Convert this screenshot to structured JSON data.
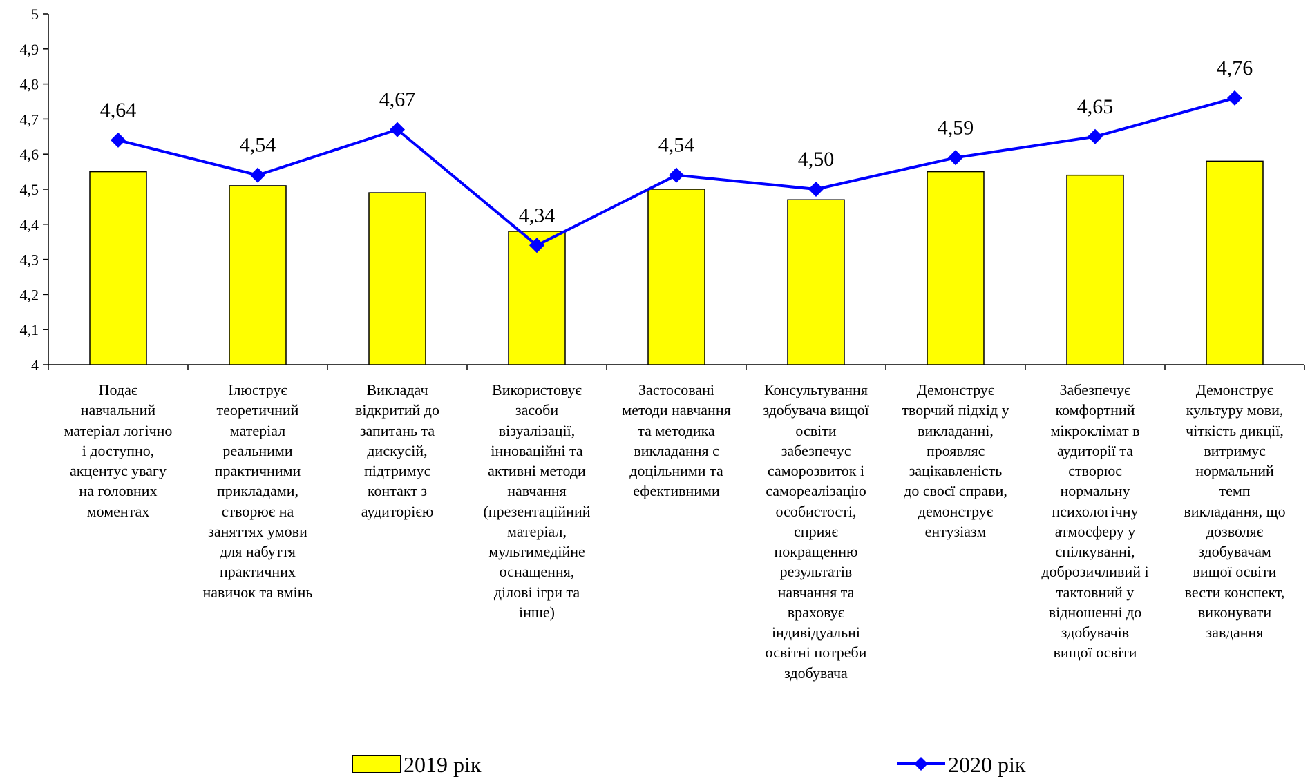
{
  "chart_data": {
    "type": "bar",
    "categories": [
      "Подає\nнавчальний\nматеріал логічно\nі доступно,\nакцентує увагу\nна головних\nмоментах",
      "Ілюструє\nтеоретичний\nматеріал\nреальними\nпрактичними\nприкладами,\nстворює на\nзаняттях умови\nдля набуття\nпрактичних\nнавичок та вмінь",
      "Викладач\nвідкритий до\nзапитань та\nдискусій,\nпідтримує\nконтакт з\nаудиторією",
      "Використовує\nзасоби\nвізуалізації,\nінноваційні та\nактивні методи\nнавчання\n(презентаційний\nматеріал,\nмультимедійне\nоснащення,\nділові ігри та\nінше)",
      "Застосовані\nметоди навчання\nта методика\nвикладання  є\nдоцільними та\nефективними",
      "Консультування\nздобувача вищої\nосвіти\nзабезпечує\nсаморозвиток і\nсамореалізацію\nособистості,\nсприяє\nпокращенню\nрезультатів\nнавчання та\nвраховує\nіндивідуальні\nосвітні потреби\nздобувача",
      "Демонструє\nтворчий підхід у\nвикладанні,\nпроявляє\nзацікавленість\nдо своєї справи,\nдемонструє\nентузіазм",
      "Забезпечує\nкомфортний\nмікроклімат в\nаудиторії та\nстворює\nнормальну\nпсихологічну\nатмосферу у\nспілкуванні,\nдоброзичливий і\nтактовний у\nвідношенні до\nздобувачів\nвищої освіти",
      "Демонструє\nкультуру мови,\nчіткість дикції,\nвитримує\nнормальний\nтемп\nвикладання, що\nдозволяє\nздобувачам\nвищої освіти\nвести конспект,\nвиконувати\nзавдання"
    ],
    "series": [
      {
        "name": "2019 рік",
        "type": "bar",
        "color": "#ffff00",
        "values": [
          4.55,
          4.51,
          4.49,
          4.38,
          4.5,
          4.47,
          4.55,
          4.54,
          4.58
        ]
      },
      {
        "name": "2020 рік",
        "type": "line",
        "color": "#0000ff",
        "values": [
          4.64,
          4.54,
          4.67,
          4.34,
          4.54,
          4.5,
          4.59,
          4.65,
          4.76
        ],
        "labels": [
          "4,64",
          "4,54",
          "4,67",
          "4,34",
          "4,54",
          "4,50",
          "4,59",
          "4,65",
          "4,76"
        ]
      }
    ],
    "ylim": [
      4,
      5
    ],
    "yticks": [
      "4",
      "4,1",
      "4,2",
      "4,3",
      "4,4",
      "4,5",
      "4,6",
      "4,7",
      "4,8",
      "4,9",
      "5"
    ],
    "grid": false,
    "legend_position": "bottom"
  }
}
